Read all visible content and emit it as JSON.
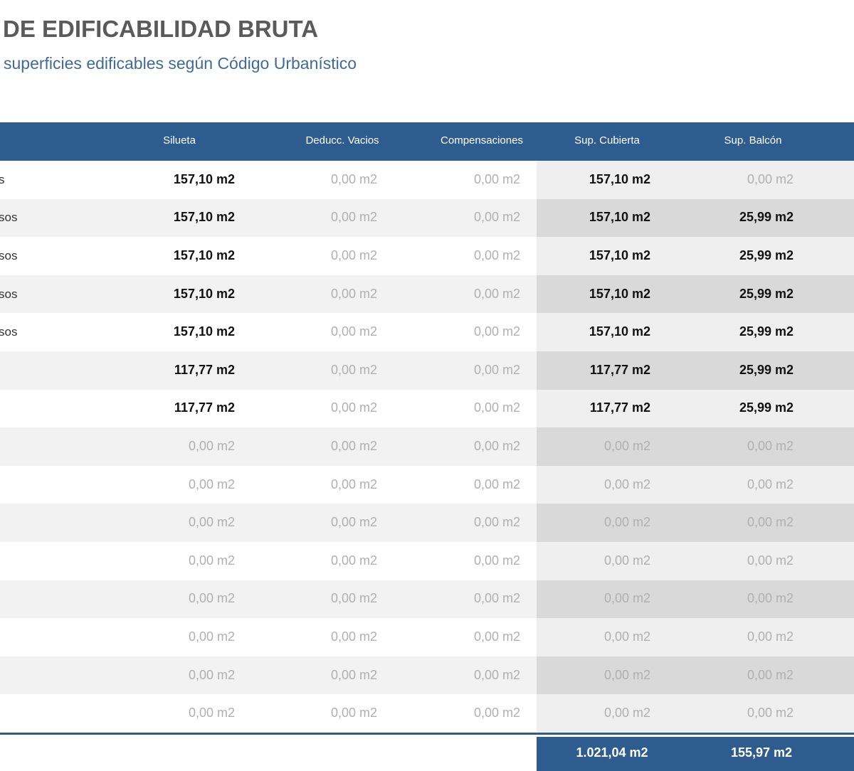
{
  "header": {
    "title": "DE EDIFICABILIDAD BRUTA",
    "subtitle": "superficies edificables según Código Urbanístico"
  },
  "table": {
    "columns": [
      "Silueta",
      "Deducc. Vacios",
      "Compensaciones",
      "Sup. Cubierta",
      "Sup. Balcón"
    ],
    "rows": [
      {
        "label": "s",
        "cells": [
          "157,10 m2",
          "0,00 m2",
          "0,00 m2",
          "157,10 m2",
          "0,00 m2"
        ],
        "bold": [
          true,
          false,
          false,
          true,
          false
        ]
      },
      {
        "label": "sos",
        "cells": [
          "157,10 m2",
          "0,00 m2",
          "0,00 m2",
          "157,10 m2",
          "25,99 m2"
        ],
        "bold": [
          true,
          false,
          false,
          true,
          true
        ]
      },
      {
        "label": "sos",
        "cells": [
          "157,10 m2",
          "0,00 m2",
          "0,00 m2",
          "157,10 m2",
          "25,99 m2"
        ],
        "bold": [
          true,
          false,
          false,
          true,
          true
        ]
      },
      {
        "label": "sos",
        "cells": [
          "157,10 m2",
          "0,00 m2",
          "0,00 m2",
          "157,10 m2",
          "25,99 m2"
        ],
        "bold": [
          true,
          false,
          false,
          true,
          true
        ]
      },
      {
        "label": "sos",
        "cells": [
          "157,10 m2",
          "0,00 m2",
          "0,00 m2",
          "157,10 m2",
          "25,99 m2"
        ],
        "bold": [
          true,
          false,
          false,
          true,
          true
        ]
      },
      {
        "cells": [
          "117,77 m2",
          "0,00 m2",
          "0,00 m2",
          "117,77 m2",
          "25,99 m2"
        ],
        "bold": [
          true,
          false,
          false,
          true,
          true
        ]
      },
      {
        "cells": [
          "117,77 m2",
          "0,00 m2",
          "0,00 m2",
          "117,77 m2",
          "25,99 m2"
        ],
        "bold": [
          true,
          false,
          false,
          true,
          true
        ]
      },
      {
        "cells": [
          "0,00 m2",
          "0,00 m2",
          "0,00 m2",
          "0,00 m2",
          "0,00 m2"
        ],
        "bold": [
          false,
          false,
          false,
          false,
          false
        ]
      },
      {
        "cells": [
          "0,00 m2",
          "0,00 m2",
          "0,00 m2",
          "0,00 m2",
          "0,00 m2"
        ],
        "bold": [
          false,
          false,
          false,
          false,
          false
        ]
      },
      {
        "cells": [
          "0,00 m2",
          "0,00 m2",
          "0,00 m2",
          "0,00 m2",
          "0,00 m2"
        ],
        "bold": [
          false,
          false,
          false,
          false,
          false
        ]
      },
      {
        "cells": [
          "0,00 m2",
          "0,00 m2",
          "0,00 m2",
          "0,00 m2",
          "0,00 m2"
        ],
        "bold": [
          false,
          false,
          false,
          false,
          false
        ]
      },
      {
        "cells": [
          "0,00 m2",
          "0,00 m2",
          "0,00 m2",
          "0,00 m2",
          "0,00 m2"
        ],
        "bold": [
          false,
          false,
          false,
          false,
          false
        ]
      },
      {
        "cells": [
          "0,00 m2",
          "0,00 m2",
          "0,00 m2",
          "0,00 m2",
          "0,00 m2"
        ],
        "bold": [
          false,
          false,
          false,
          false,
          false
        ]
      },
      {
        "cells": [
          "0,00 m2",
          "0,00 m2",
          "0,00 m2",
          "0,00 m2",
          "0,00 m2"
        ],
        "bold": [
          false,
          false,
          false,
          false,
          false
        ]
      },
      {
        "cells": [
          "0,00 m2",
          "0,00 m2",
          "0,00 m2",
          "0,00 m2",
          "0,00 m2"
        ],
        "bold": [
          false,
          false,
          false,
          false,
          false
        ]
      }
    ],
    "totals": [
      "1.021,04 m2",
      "155,97 m2"
    ]
  }
}
